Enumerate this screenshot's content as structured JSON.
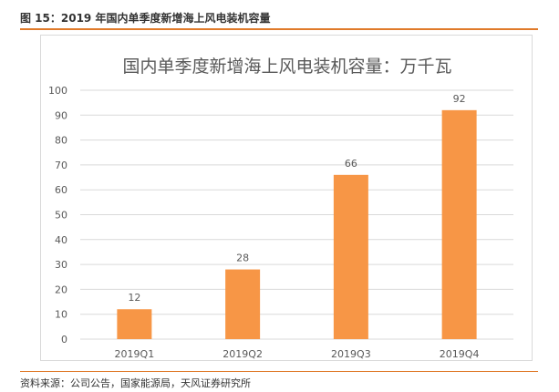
{
  "figure": {
    "title": "图 15：2019 年国内单季度新增海上风电装机容量",
    "source": "资料来源：公司公告，国家能源局，天风证券研究所"
  },
  "colors": {
    "accent": "#e07a2a",
    "bar": "#f79646",
    "grid": "#d9d9d9",
    "text": "#595959"
  },
  "chart_data": {
    "type": "bar",
    "title": "国内单季度新增海上风电装机容量：万千瓦",
    "categories": [
      "2019Q1",
      "2019Q2",
      "2019Q3",
      "2019Q4"
    ],
    "values": [
      12,
      28,
      66,
      92
    ],
    "ylim": [
      0,
      100
    ],
    "yticks": [
      0,
      10,
      20,
      30,
      40,
      50,
      60,
      70,
      80,
      90,
      100
    ],
    "xlabel": "",
    "ylabel": "",
    "grid": true,
    "data_labels": true
  }
}
